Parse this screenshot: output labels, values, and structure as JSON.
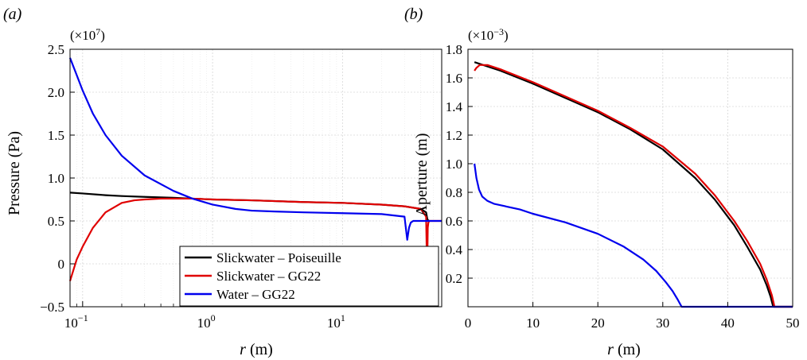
{
  "chart_data": [
    {
      "panel_label": "(a)",
      "type": "line",
      "multiplier": "(×10",
      "multiplier_exp": "7",
      "multiplier_close": ")",
      "xlabel_var": "r",
      "xlabel_unit": " (m)",
      "ylabel": "Pressure (Pa)",
      "xscale": "log",
      "xlim": [
        0.08,
        58
      ],
      "ylim": [
        -0.5,
        2.5
      ],
      "grid": true,
      "yticks": [
        -0.5,
        0,
        0.5,
        1.0,
        1.5,
        2.0,
        2.5
      ],
      "ytick_labels": [
        "−0.5",
        "0",
        "0.5",
        "1.0",
        "1.5",
        "2.0",
        "2.5"
      ],
      "xticks": [
        {
          "value": 0.1,
          "base": "10",
          "exp": "−1"
        },
        {
          "value": 1,
          "base": "10",
          "exp": "0"
        },
        {
          "value": 10,
          "base": "10",
          "exp": "1"
        }
      ],
      "legend_position": "bottom-right",
      "series": [
        {
          "name": "Slickwater – Poiseuille",
          "color": "#000000",
          "x": [
            0.08,
            0.1,
            0.15,
            0.2,
            0.3,
            0.5,
            0.7,
            1,
            2,
            5,
            10,
            20,
            30,
            40,
            44,
            45,
            46,
            47
          ],
          "y": [
            0.83,
            0.82,
            0.8,
            0.79,
            0.78,
            0.77,
            0.76,
            0.75,
            0.74,
            0.72,
            0.71,
            0.69,
            0.67,
            0.64,
            0.6,
            0.52,
            0.5,
            0.5
          ]
        },
        {
          "name": "Slickwater – GG22",
          "color": "#e00000",
          "x": [
            0.08,
            0.09,
            0.1,
            0.12,
            0.15,
            0.2,
            0.25,
            0.3,
            0.4,
            0.5,
            0.7,
            1,
            2,
            5,
            10,
            20,
            30,
            40,
            44,
            44.8,
            45.3,
            45.8,
            46.5,
            48,
            52,
            58
          ],
          "y": [
            -0.2,
            0.05,
            0.2,
            0.42,
            0.6,
            0.71,
            0.74,
            0.75,
            0.76,
            0.76,
            0.76,
            0.75,
            0.74,
            0.72,
            0.71,
            0.69,
            0.67,
            0.64,
            0.55,
            -0.13,
            0.42,
            0.48,
            0.5,
            0.5,
            0.5,
            0.5
          ]
        },
        {
          "name": "Water – GG22",
          "color": "#0000ee",
          "x": [
            0.08,
            0.09,
            0.1,
            0.12,
            0.15,
            0.2,
            0.3,
            0.5,
            0.7,
            1,
            1.5,
            2,
            3,
            5,
            10,
            20,
            30,
            31.5,
            32.5,
            33.5,
            35,
            40,
            50,
            58
          ],
          "y": [
            2.4,
            2.2,
            2.02,
            1.75,
            1.5,
            1.26,
            1.03,
            0.85,
            0.76,
            0.69,
            0.64,
            0.62,
            0.61,
            0.6,
            0.59,
            0.58,
            0.55,
            0.28,
            0.42,
            0.48,
            0.5,
            0.5,
            0.5,
            0.5
          ]
        }
      ]
    },
    {
      "panel_label": "(b)",
      "type": "line",
      "multiplier": "(×10",
      "multiplier_exp": "−3",
      "multiplier_close": ")",
      "xlabel_var": "r",
      "xlabel_unit": " (m)",
      "ylabel": "Aperture (m)",
      "xscale": "linear",
      "xlim": [
        0,
        50
      ],
      "ylim": [
        0,
        1.8
      ],
      "grid": true,
      "yticks": [
        0.2,
        0.4,
        0.6,
        0.8,
        1.0,
        1.2,
        1.4,
        1.6,
        1.8
      ],
      "ytick_labels": [
        "0.2",
        "0.4",
        "0.6",
        "0.8",
        "1.0",
        "1.2",
        "1.4",
        "1.6",
        "1.8"
      ],
      "xticks_values": [
        0,
        10,
        20,
        30,
        40,
        50
      ],
      "xtick_labels": [
        "0",
        "10",
        "20",
        "30",
        "40",
        "50"
      ],
      "series": [
        {
          "name": "Slickwater – Poiseuille",
          "color": "#000000",
          "x": [
            1,
            5,
            10,
            15,
            20,
            25,
            30,
            35,
            38,
            41,
            43,
            45,
            46,
            46.6,
            47,
            50
          ],
          "y": [
            1.71,
            1.65,
            1.56,
            1.46,
            1.36,
            1.24,
            1.1,
            0.9,
            0.75,
            0.57,
            0.42,
            0.26,
            0.15,
            0.07,
            0.0,
            0.0
          ]
        },
        {
          "name": "Slickwater – GG22",
          "color": "#e00000",
          "x": [
            1,
            1.3,
            1.8,
            3,
            5,
            10,
            15,
            20,
            25,
            30,
            35,
            38,
            41,
            43,
            45,
            46,
            46.8,
            47.2,
            50
          ],
          "y": [
            1.65,
            1.67,
            1.69,
            1.69,
            1.66,
            1.57,
            1.47,
            1.37,
            1.25,
            1.12,
            0.93,
            0.78,
            0.6,
            0.46,
            0.3,
            0.19,
            0.08,
            0.0,
            0.0
          ]
        },
        {
          "name": "Water – GG22",
          "color": "#0000ee",
          "x": [
            1,
            1.3,
            1.7,
            2.2,
            3,
            4,
            5,
            8,
            10,
            15,
            20,
            24,
            27,
            29,
            30.5,
            31.5,
            32.3,
            32.9,
            50
          ],
          "y": [
            1.0,
            0.9,
            0.82,
            0.77,
            0.74,
            0.72,
            0.71,
            0.68,
            0.65,
            0.59,
            0.51,
            0.42,
            0.33,
            0.25,
            0.17,
            0.11,
            0.05,
            0.0,
            0.0
          ]
        }
      ]
    }
  ]
}
